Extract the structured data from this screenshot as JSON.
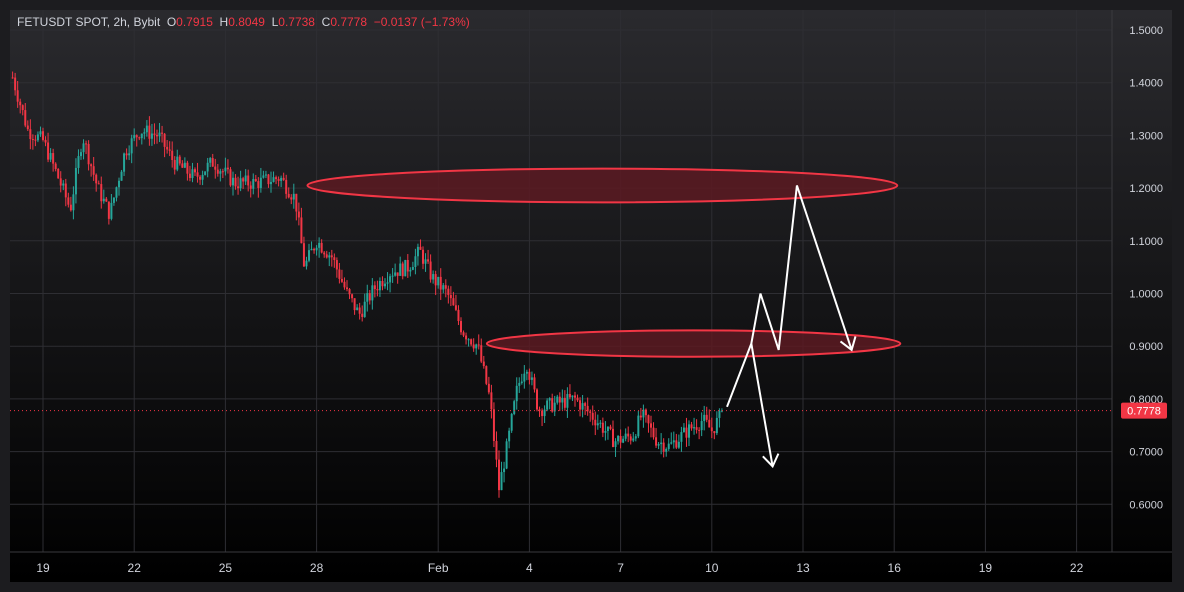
{
  "header": {
    "symbol": "FETUSDT SPOT, 2h, Bybit",
    "open_label": "O",
    "open": "0.7915",
    "high_label": "H",
    "high": "0.8049",
    "low_label": "L",
    "low": "0.7738",
    "close_label": "C",
    "close": "0.7778",
    "change": "−0.0137 (−1.73%)"
  },
  "colors": {
    "up": "#26a69a",
    "down": "#f23645",
    "background_top": "#2a2a2e",
    "background_bottom": "#000000",
    "zone_fill": "#5c1a22",
    "zone_stroke": "#f23645",
    "projection": "#ffffff"
  },
  "chart_data": {
    "type": "candlestick",
    "timeframe": "2h",
    "y_axis_ticks": [
      "1.5000",
      "1.4000",
      "1.3000",
      "1.2000",
      "1.1000",
      "1.0000",
      "0.9000",
      "0.8000",
      "0.7000",
      "0.6000"
    ],
    "x_axis_ticks": [
      "19",
      "22",
      "25",
      "28",
      "Feb",
      "4",
      "7",
      "10",
      "13",
      "16",
      "19",
      "22"
    ],
    "ylim": [
      0.53,
      1.53
    ],
    "last_price": 0.7778,
    "last_price_label": "0.7778",
    "price_path": [
      {
        "x": "Jan 18",
        "y": 1.41
      },
      {
        "x": "Jan 18.5",
        "y": 1.31
      },
      {
        "x": "Jan 19",
        "y": 1.29
      },
      {
        "x": "Jan 19.5",
        "y": 1.22
      },
      {
        "x": "Jan 19.9",
        "y": 1.16
      },
      {
        "x": "Jan 20.3",
        "y": 1.3
      },
      {
        "x": "Jan 20.8",
        "y": 1.2
      },
      {
        "x": "Jan 21.2",
        "y": 1.15
      },
      {
        "x": "Jan 21.7",
        "y": 1.27
      },
      {
        "x": "Jan 22.2",
        "y": 1.31
      },
      {
        "x": "Jan 22.8",
        "y": 1.3
      },
      {
        "x": "Jan 23.3",
        "y": 1.25
      },
      {
        "x": "Jan 24",
        "y": 1.22
      },
      {
        "x": "Jan 24.6",
        "y": 1.25
      },
      {
        "x": "Jan 25.3",
        "y": 1.21
      },
      {
        "x": "Jan 26",
        "y": 1.21
      },
      {
        "x": "Jan 26.8",
        "y": 1.22
      },
      {
        "x": "Jan 27.3",
        "y": 1.18
      },
      {
        "x": "Jan 27.6",
        "y": 1.05
      },
      {
        "x": "Jan 28",
        "y": 1.1
      },
      {
        "x": "Jan 28.5",
        "y": 1.07
      },
      {
        "x": "Jan 29",
        "y": 1.0
      },
      {
        "x": "Jan 29.4",
        "y": 0.96
      },
      {
        "x": "Jan 29.9",
        "y": 1.01
      },
      {
        "x": "Jan 30.4",
        "y": 1.04
      },
      {
        "x": "Jan 31",
        "y": 1.05
      },
      {
        "x": "Jan 31.4",
        "y": 1.08
      },
      {
        "x": "Jan 31.8",
        "y": 1.03
      },
      {
        "x": "Feb 1.3",
        "y": 1.0
      },
      {
        "x": "Feb 1.8",
        "y": 0.93
      },
      {
        "x": "Feb 2.3",
        "y": 0.9
      },
      {
        "x": "Feb 2.7",
        "y": 0.8
      },
      {
        "x": "Feb 3.0",
        "y": 0.63
      },
      {
        "x": "Feb 3.3",
        "y": 0.72
      },
      {
        "x": "Feb 3.6",
        "y": 0.82
      },
      {
        "x": "Feb 3.9",
        "y": 0.87
      },
      {
        "x": "Feb 4.3",
        "y": 0.78
      },
      {
        "x": "Feb 4.8",
        "y": 0.79
      },
      {
        "x": "Feb 5.5",
        "y": 0.8
      },
      {
        "x": "Feb 6.2",
        "y": 0.76
      },
      {
        "x": "Feb 6.8",
        "y": 0.72
      },
      {
        "x": "Feb 7.4",
        "y": 0.73
      },
      {
        "x": "Feb 7.7",
        "y": 0.77
      },
      {
        "x": "Feb 8.2",
        "y": 0.72
      },
      {
        "x": "Feb 8.6",
        "y": 0.71
      },
      {
        "x": "Feb 9.2",
        "y": 0.74
      },
      {
        "x": "Feb 9.7",
        "y": 0.76
      },
      {
        "x": "Feb 10.0",
        "y": 0.74
      },
      {
        "x": "Feb 10.4",
        "y": 0.7778
      }
    ],
    "zones": [
      {
        "x_start": "Jan 27.7",
        "x_end": "Feb 16.1",
        "y_center": 1.205,
        "y_half": 0.032
      },
      {
        "x_start": "Feb 2.6",
        "x_end": "Feb 16.2",
        "y_center": 0.905,
        "y_half": 0.025
      }
    ],
    "projections": [
      {
        "points": [
          {
            "x": "Feb 10.5",
            "y": 0.785
          },
          {
            "x": "Feb 11.3",
            "y": 0.905
          },
          {
            "x": "Feb 11.6",
            "y": 1.0
          },
          {
            "x": "Feb 12.2",
            "y": 0.893
          },
          {
            "x": "Feb 12.8",
            "y": 1.205
          },
          {
            "x": "Feb 14.6",
            "y": 0.893
          }
        ]
      },
      {
        "points": [
          {
            "x": "Feb 11.3",
            "y": 0.905
          },
          {
            "x": "Feb 12.0",
            "y": 0.672
          }
        ]
      }
    ]
  }
}
